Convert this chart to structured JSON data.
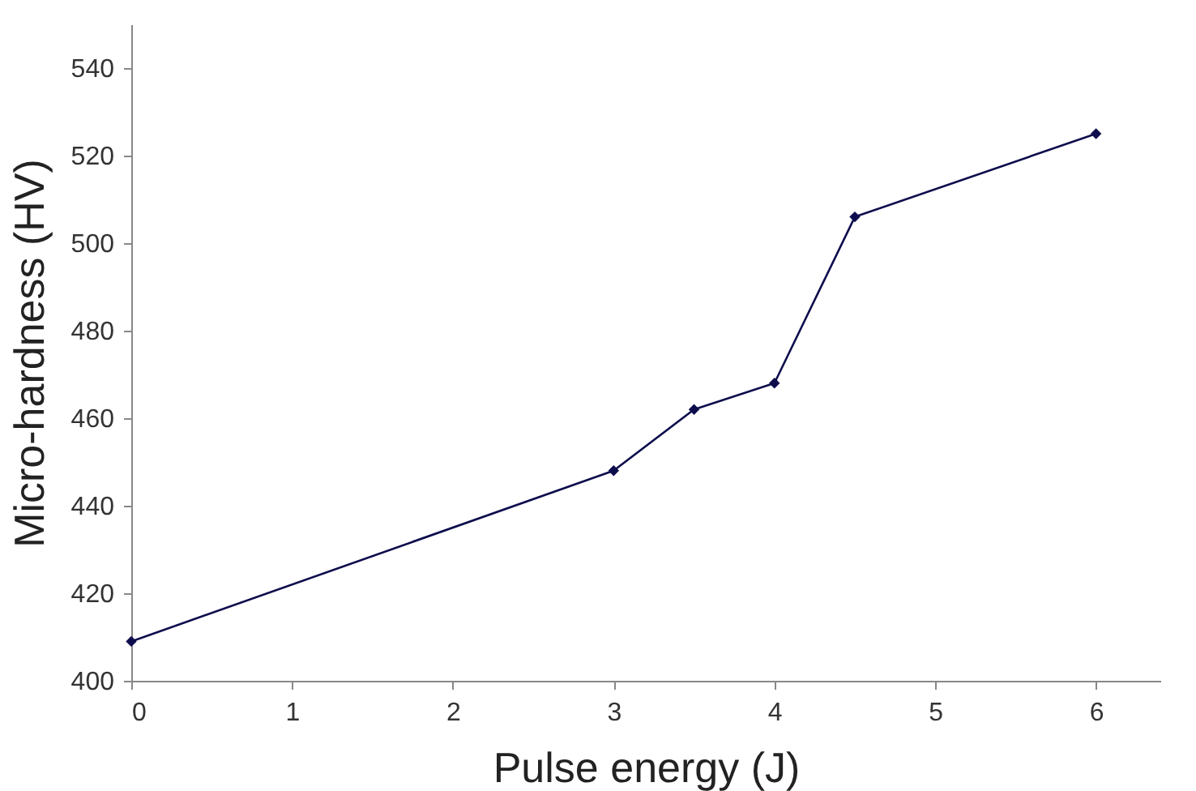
{
  "chart_data": {
    "type": "line",
    "xlabel": "Pulse energy (J)",
    "ylabel": "Micro-hardness (HV)",
    "x": [
      0,
      3,
      3.5,
      4,
      4.5,
      6
    ],
    "series": [
      {
        "color": "#0d0d4d",
        "values": [
          409,
          448,
          462,
          468,
          506,
          525
        ]
      }
    ],
    "xlim": [
      0,
      6.4
    ],
    "xticks": [
      0,
      1,
      2,
      3,
      4,
      5,
      6
    ],
    "ylim": [
      400,
      550
    ],
    "yticks": [
      400,
      420,
      440,
      460,
      480,
      500,
      520,
      540
    ],
    "grid": false,
    "legend": false,
    "marker": "diamond",
    "line_style": "solid"
  }
}
